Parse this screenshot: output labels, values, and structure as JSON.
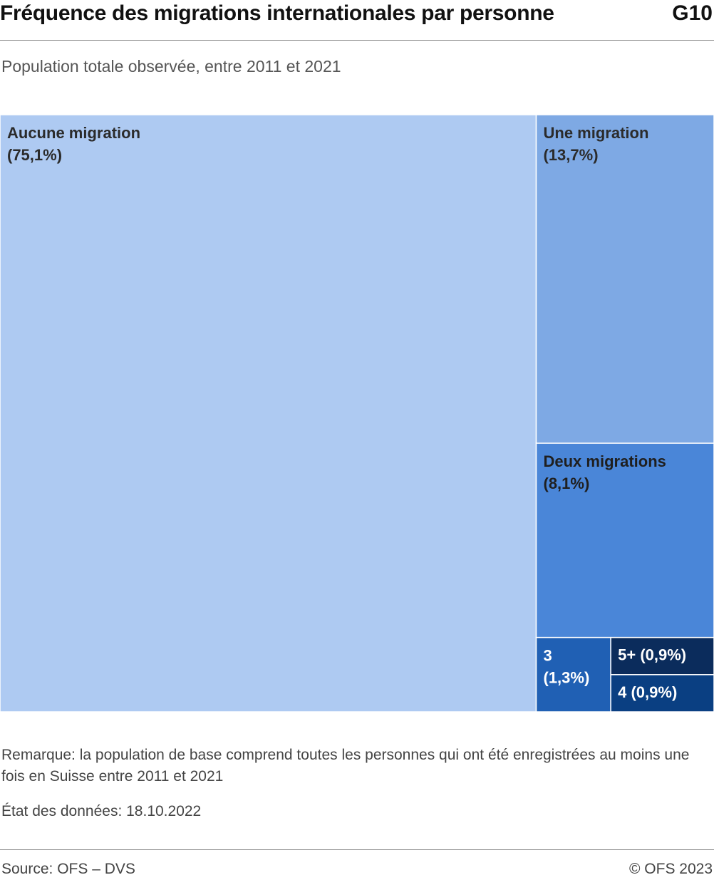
{
  "header": {
    "title": "Fréquence des migrations internationales par personne",
    "graphic_number": "G10",
    "subtitle": "Population totale observée, entre 2011 et 2021"
  },
  "chart_data": {
    "type": "treemap",
    "unit": "%",
    "nodes": [
      {
        "name": "Aucune migration",
        "pct_label": "(75,1%)",
        "value": 75.1,
        "color": "#aecaf2",
        "text_color": "#2b2b2b"
      },
      {
        "name": "Une migration",
        "pct_label": "(13,7%)",
        "value": 13.7,
        "color": "#7ea9e4",
        "text_color": "#2b2b2b"
      },
      {
        "name": "Deux migrations",
        "pct_label": "(8,1%)",
        "value": 8.1,
        "color": "#4a86d8",
        "text_color": "#1f1f1f"
      },
      {
        "name": "3",
        "pct_label": "(1,3%)",
        "value": 1.3,
        "color": "#2060b4",
        "text_color": "#ffffff"
      },
      {
        "name": "5+ (0,9%)",
        "pct_label": "",
        "value": 0.9,
        "color": "#0b2c5c",
        "text_color": "#ffffff"
      },
      {
        "name": "4 (0,9%)",
        "pct_label": "",
        "value": 0.9,
        "color": "#0a3f82",
        "text_color": "#ffffff"
      }
    ]
  },
  "footer": {
    "remark": "Remarque: la population de base comprend toutes les personnes qui ont été enregistrées au moins une fois en Suisse entre 2011 et 2021",
    "data_status": "État des données: 18.10.2022",
    "source": "Source: OFS – DVS",
    "copyright": "© OFS 2023"
  }
}
